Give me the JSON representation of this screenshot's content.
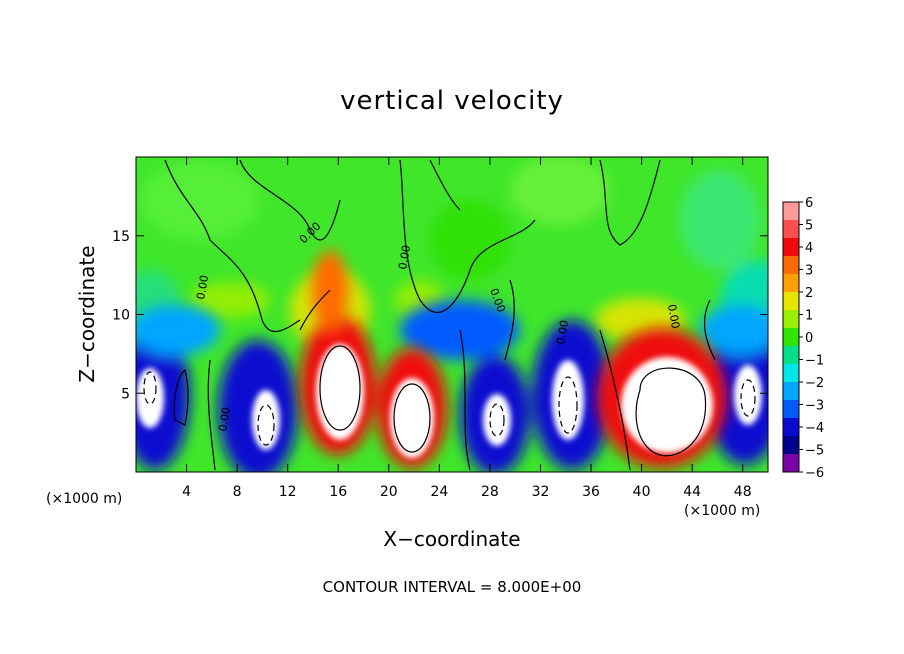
{
  "chart_data": {
    "type": "heatmap",
    "title": "vertical velocity",
    "xlabel": "X−coordinate",
    "ylabel": "Z−coordinate",
    "x_unit_label": "(×1000 m)",
    "y_unit_label": "(×1000 m)",
    "footer": "CONTOUR INTERVAL = 8.000E+00",
    "xlim": [
      0,
      50
    ],
    "ylim": [
      0,
      20
    ],
    "x_ticks": [
      4,
      8,
      12,
      16,
      20,
      24,
      28,
      32,
      36,
      40,
      44,
      48
    ],
    "y_ticks": [
      5,
      10,
      15
    ],
    "contour_interval": 8.0,
    "contour_labels": [
      "0.00",
      "0.00",
      "0.00",
      "0.00",
      "0.00",
      "0.00",
      "0.00"
    ],
    "colorbar": {
      "min": -6,
      "max": 6,
      "labels": [
        "6",
        "5",
        "4",
        "3",
        "2",
        "1",
        "0",
        "−1",
        "−2",
        "−3",
        "−4",
        "−5",
        "−6"
      ],
      "colors": [
        "#ff9a9a",
        "#ff4f4f",
        "#f00a0a",
        "#ff6a00",
        "#ff9f00",
        "#e5e500",
        "#9bef00",
        "#2ee600",
        "#00e08a",
        "#00e6e6",
        "#00a6ff",
        "#005cff",
        "#0b0bd0",
        "#00008e",
        "#7a00a8"
      ]
    },
    "features": [
      {
        "type": "updraft",
        "x": 16,
        "z": 5.2,
        "label_value": "≥ 8"
      },
      {
        "type": "updraft",
        "x": 21.8,
        "z": 3.3,
        "label_value": "≥ 8"
      },
      {
        "type": "updraft",
        "x": 42,
        "z": 4.4,
        "label_value": "≥ 8"
      },
      {
        "type": "downdraft",
        "x": 10.5,
        "z": 3.5,
        "label_value": "≤ −8"
      },
      {
        "type": "downdraft",
        "x": 28.5,
        "z": 3.5,
        "label_value": "≤ −8"
      },
      {
        "type": "downdraft",
        "x": 34.5,
        "z": 4.5,
        "label_value": "≤ −8"
      },
      {
        "type": "downdraft",
        "x": 48.5,
        "z": 4.8,
        "label_value": "≤ −8"
      },
      {
        "type": "downdraft",
        "x": 0.7,
        "z": 4.8,
        "label_value": "≤ −8"
      }
    ]
  }
}
